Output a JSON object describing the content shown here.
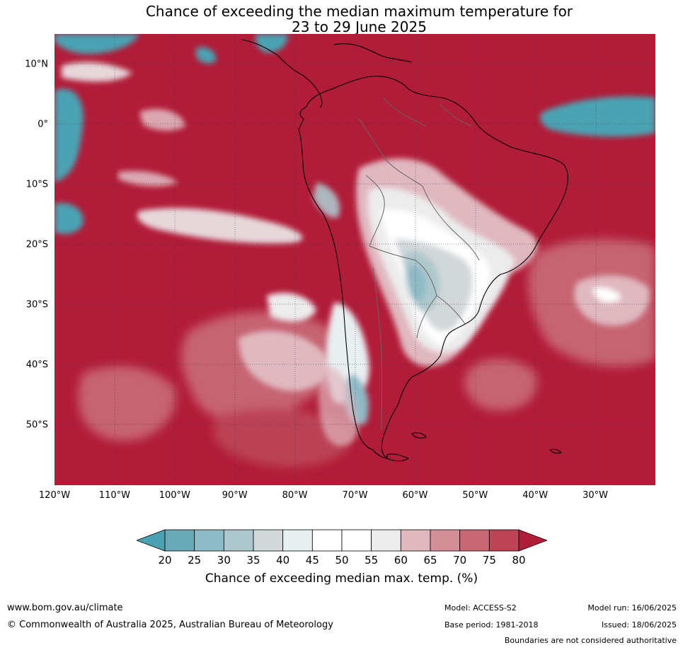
{
  "title": {
    "line1": "Chance of exceeding the median maximum temperature for",
    "line2": "23 to 29 June 2025"
  },
  "map": {
    "region": "South America and surrounding oceans",
    "lat_range": [
      -60,
      15
    ],
    "lon_range": [
      -120,
      -20
    ],
    "lat_labels": [
      {
        "value": 10,
        "text": "10°N"
      },
      {
        "value": 0,
        "text": "0°"
      },
      {
        "value": -10,
        "text": "10°S"
      },
      {
        "value": -20,
        "text": "20°S"
      },
      {
        "value": -30,
        "text": "30°S"
      },
      {
        "value": -40,
        "text": "40°S"
      },
      {
        "value": -50,
        "text": "50°S"
      }
    ],
    "lon_labels": [
      {
        "value": -120,
        "text": "120°W"
      },
      {
        "value": -110,
        "text": "110°W"
      },
      {
        "value": -100,
        "text": "100°W"
      },
      {
        "value": -90,
        "text": "90°W"
      },
      {
        "value": -80,
        "text": "80°W"
      },
      {
        "value": -70,
        "text": "70°W"
      },
      {
        "value": -60,
        "text": "60°W"
      },
      {
        "value": -50,
        "text": "50°W"
      },
      {
        "value": -40,
        "text": "40°W"
      },
      {
        "value": -30,
        "text": "30°W"
      }
    ]
  },
  "colorbar": {
    "ticks": [
      "20",
      "25",
      "30",
      "35",
      "40",
      "45",
      "50",
      "55",
      "60",
      "65",
      "70",
      "75",
      "80"
    ],
    "below_color": "#4aa3b3",
    "above_color": "#b11c38",
    "colors": [
      "#6aaab8",
      "#8ebac6",
      "#adc8cd",
      "#d2d8da",
      "#e8eff1",
      "#ffffff",
      "#ffffff",
      "#ececed",
      "#e0b8bf",
      "#d48e98",
      "#c86876",
      "#bc4456"
    ],
    "label": "Chance of exceeding median max. temp. (%)"
  },
  "footer": {
    "site": "www.bom.gov.au/climate",
    "copyright": "© Commonwealth of Australia 2025, Australian Bureau of Meteorology",
    "model": "Model: ACCESS-S2",
    "base_period": "Base period: 1981-2018",
    "model_run": "Model run: 16/06/2025",
    "issued": "Issued: 18/06/2025",
    "disclaimer": "Boundaries are not considered authoritative"
  }
}
